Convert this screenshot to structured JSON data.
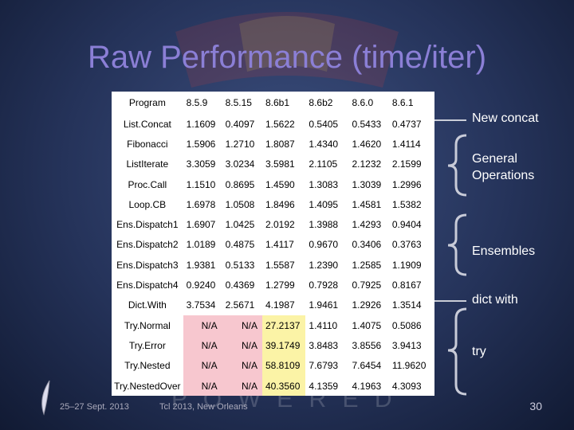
{
  "title": "Raw Performance (time/iter)",
  "table": {
    "header": [
      "Program",
      "8.5.9",
      "8.5.15",
      "8.6b1",
      "8.6b2",
      "8.6.0",
      "8.6.1"
    ],
    "rows": [
      [
        "List.Concat",
        "1.1609",
        "0.4097",
        "1.5622",
        "0.5405",
        "0.5433",
        "0.4737"
      ],
      [
        "Fibonacci",
        "1.5906",
        "1.2710",
        "1.8087",
        "1.4340",
        "1.4620",
        "1.4114"
      ],
      [
        "ListIterate",
        "3.3059",
        "3.0234",
        "3.5981",
        "2.1105",
        "2.1232",
        "2.1599"
      ],
      [
        "Proc.Call",
        "1.1510",
        "0.8695",
        "1.4590",
        "1.3083",
        "1.3039",
        "1.2996"
      ],
      [
        "Loop.CB",
        "1.6978",
        "1.0508",
        "1.8496",
        "1.4095",
        "1.4581",
        "1.5382"
      ],
      [
        "Ens.Dispatch1",
        "1.6907",
        "1.0425",
        "2.0192",
        "1.3988",
        "1.4293",
        "0.9404"
      ],
      [
        "Ens.Dispatch2",
        "1.0189",
        "0.4875",
        "1.4117",
        "0.9670",
        "0.3406",
        "0.3763"
      ],
      [
        "Ens.Dispatch3",
        "1.9381",
        "0.5133",
        "1.5587",
        "1.2390",
        "1.2585",
        "1.1909"
      ],
      [
        "Ens.Dispatch4",
        "0.9240",
        "0.4369",
        "1.2799",
        "0.7928",
        "0.7925",
        "0.8167"
      ],
      [
        "Dict.With",
        "3.7534",
        "2.5671",
        "4.1987",
        "1.9461",
        "1.2926",
        "1.3514"
      ],
      [
        "Try.Normal",
        "N/A",
        "N/A",
        "27.2137",
        "1.4110",
        "1.4075",
        "0.5086"
      ],
      [
        "Try.Error",
        "N/A",
        "N/A",
        "39.1749",
        "3.8483",
        "3.8556",
        "3.9413"
      ],
      [
        "Try.Nested",
        "N/A",
        "N/A",
        "58.8109",
        "7.6793",
        "7.6454",
        "11.9620"
      ],
      [
        "Try.NestedOver",
        "N/A",
        "N/A",
        "40.3560",
        "4.1359",
        "4.1963",
        "4.3093"
      ]
    ]
  },
  "annotations": {
    "new_concat": "New concat",
    "general": "General Operations",
    "ensembles": "Ensembles",
    "dict_with": "dict with",
    "try": "try"
  },
  "watermark": "P O W E R E D",
  "footer": {
    "date": "25‒27 Sept. 2013",
    "event": "Tcl 2013, New Orleans",
    "page": "30"
  }
}
